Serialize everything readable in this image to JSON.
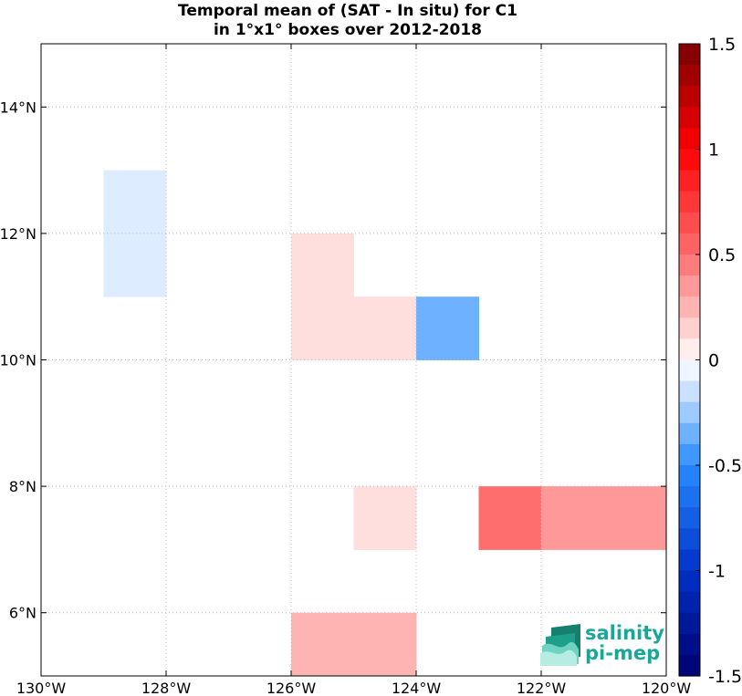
{
  "chart_data": {
    "type": "heatmap",
    "title_line1": "Temporal mean of (SAT - In situ) for C1",
    "title_line2": "in 1°x1° boxes over 2012-2018",
    "xlim": [
      -130,
      -120
    ],
    "ylim": [
      5,
      15
    ],
    "x_ticks": [
      {
        "value": -130,
        "label": "130°W"
      },
      {
        "value": -128,
        "label": "128°W"
      },
      {
        "value": -126,
        "label": "126°W"
      },
      {
        "value": -124,
        "label": "124°W"
      },
      {
        "value": -122,
        "label": "122°W"
      },
      {
        "value": -120,
        "label": "120°W"
      }
    ],
    "y_ticks": [
      {
        "value": 6,
        "label": "6°N"
      },
      {
        "value": 8,
        "label": "8°N"
      },
      {
        "value": 10,
        "label": "10°N"
      },
      {
        "value": 12,
        "label": "12°N"
      },
      {
        "value": 14,
        "label": "14°N"
      }
    ],
    "grid": true,
    "cells": [
      {
        "lon": -129,
        "lat": 12,
        "value": -0.1
      },
      {
        "lon": -129,
        "lat": 11,
        "value": -0.1
      },
      {
        "lon": -126,
        "lat": 11,
        "value": 0.1
      },
      {
        "lon": -126,
        "lat": 10,
        "value": 0.1
      },
      {
        "lon": -125,
        "lat": 10,
        "value": 0.1
      },
      {
        "lon": -124,
        "lat": 10,
        "value": -0.35
      },
      {
        "lon": -125,
        "lat": 7,
        "value": 0.1
      },
      {
        "lon": -123,
        "lat": 7,
        "value": 0.5
      },
      {
        "lon": -122,
        "lat": 7,
        "value": 0.35
      },
      {
        "lon": -121,
        "lat": 7,
        "value": 0.35
      },
      {
        "lon": -126,
        "lat": 5,
        "value": 0.25
      },
      {
        "lon": -125,
        "lat": 5,
        "value": 0.25
      }
    ],
    "colorbar": {
      "min": -1.5,
      "max": 1.5,
      "ticks": [
        {
          "value": 1.5,
          "label": "1.5"
        },
        {
          "value": 1,
          "label": "1"
        },
        {
          "value": 0.5,
          "label": "0.5"
        },
        {
          "value": 0,
          "label": "0"
        },
        {
          "value": -0.5,
          "label": "-0.5"
        },
        {
          "value": -1,
          "label": "-1"
        },
        {
          "value": -1.5,
          "label": "-1.5"
        }
      ]
    }
  },
  "logo": {
    "line1": "salinity",
    "line2": "pi-mep",
    "color": "#18a89a"
  }
}
